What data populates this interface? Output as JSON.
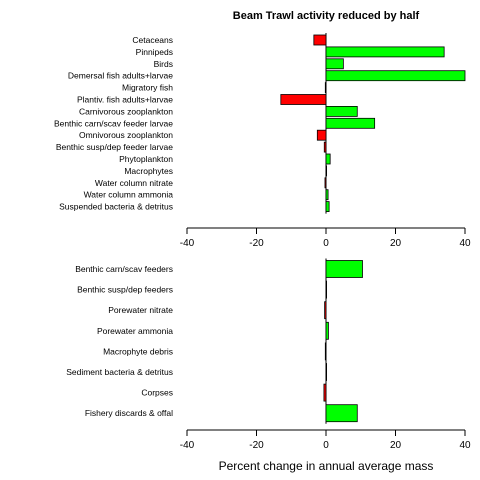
{
  "title": "Beam Trawl activity reduced by half",
  "xlabel": "Percent change in annual average mass",
  "colors": {
    "positive": "#00ff00",
    "negative": "#ff0000",
    "stroke": "#000000"
  },
  "chart_data": [
    {
      "type": "bar",
      "orientation": "horizontal",
      "panel": "top",
      "xlim": [
        -40,
        40
      ],
      "ticks": [
        -40,
        -20,
        0,
        20,
        40
      ],
      "categories": [
        "Cetaceans",
        "Pinnipeds",
        "Birds",
        "Demersal fish adults+larvae",
        "Migratory fish",
        "Plantiv. fish adults+larvae",
        "Carnivorous zooplankton",
        "Benthic carn/scav feeder larvae",
        "Omnivorous zooplankton",
        "Benthic susp/dep feeder larvae",
        "Phytoplankton",
        "Macrophytes",
        "Water column nitrate",
        "Water column ammonia",
        "Suspended bacteria & detritus"
      ],
      "values": [
        -3.5,
        34,
        5,
        40,
        -0.2,
        -13,
        9,
        14,
        -2.5,
        -0.5,
        1.2,
        0,
        -0.3,
        0.6,
        0.9
      ]
    },
    {
      "type": "bar",
      "orientation": "horizontal",
      "panel": "bottom",
      "xlim": [
        -40,
        40
      ],
      "ticks": [
        -40,
        -20,
        0,
        20,
        40
      ],
      "categories": [
        "Benthic carn/scav feeders",
        "Benthic susp/dep feeders",
        "Porewater nitrate",
        "Porewater ammonia",
        "Macrophyte debris",
        "Sediment bacteria & detritus",
        "Corpses",
        "Fishery discards & offal"
      ],
      "values": [
        10.5,
        0,
        -0.4,
        0.7,
        -0.2,
        0,
        -0.6,
        9
      ]
    }
  ]
}
